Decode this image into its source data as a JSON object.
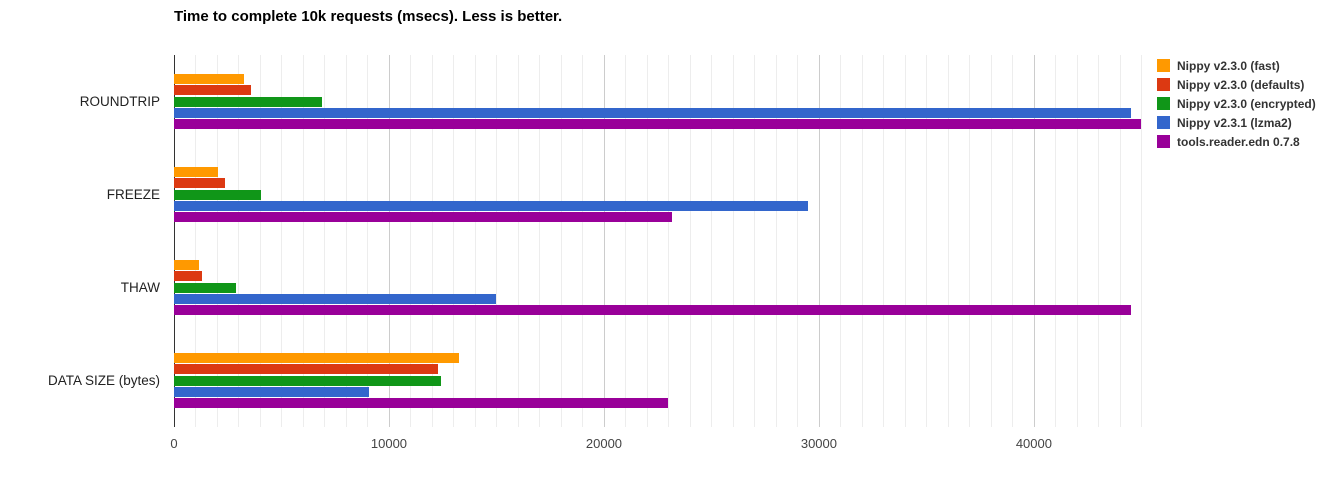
{
  "title": "Time to complete 10k requests (msecs). Less is better.",
  "chart_data": {
    "type": "bar",
    "orientation": "horizontal",
    "title": "Time to complete 10k requests (msecs). Less is better.",
    "categories": [
      "ROUNDTRIP",
      "FREEZE",
      "THAW",
      "DATA SIZE (bytes)"
    ],
    "series": [
      {
        "name": "Nippy v2.3.0 (fast)",
        "color": "#FF9900",
        "values": [
          3250,
          2050,
          1150,
          13250
        ]
      },
      {
        "name": "Nippy v2.3.0 (defaults)",
        "color": "#DC3912",
        "values": [
          3600,
          2350,
          1300,
          12300
        ]
      },
      {
        "name": "Nippy v2.3.0 (encrypted)",
        "color": "#109618",
        "values": [
          6900,
          4050,
          2900,
          12400
        ]
      },
      {
        "name": "Nippy v2.3.1 (lzma2)",
        "color": "#3366CC",
        "values": [
          44500,
          29500,
          15000,
          9070
        ]
      },
      {
        "name": "tools.reader.edn 0.7.8",
        "color": "#990099",
        "values": [
          45000,
          23150,
          44500,
          23000
        ]
      }
    ],
    "x_axis": {
      "min": 0,
      "max": 45400,
      "ticks": [
        0,
        10000,
        20000,
        30000,
        40000
      ],
      "tick_labels": [
        "0",
        "10000",
        "20000",
        "30000",
        "40000"
      ],
      "minor_gridline_step": 1000
    },
    "grid": true,
    "legend_position": "right",
    "colors": {
      "minor_gridline": "#ededed",
      "major_gridline": "#cccccc",
      "axis_line": "#333333",
      "background": "#ffffff"
    }
  }
}
